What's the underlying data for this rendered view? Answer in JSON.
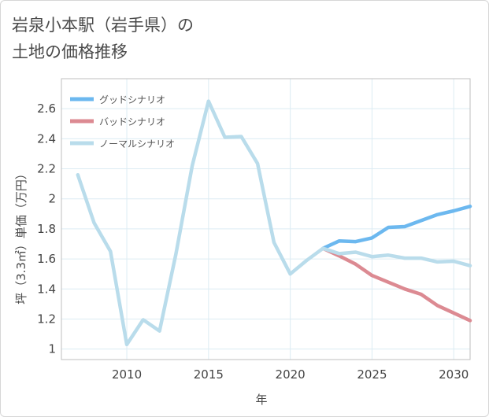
{
  "title": {
    "line1": "岩泉小本駅（岩手県）の",
    "line2": "土地の価格推移"
  },
  "chart_data": {
    "type": "line",
    "xlabel": "年",
    "ylabel": "坪（3.3㎡）単価（万円）",
    "xlim": [
      2006,
      2031
    ],
    "ylim": [
      0.93,
      2.8
    ],
    "xticks": [
      2010,
      2015,
      2020,
      2025,
      2030
    ],
    "yticks": [
      1,
      1.2,
      1.4,
      1.6,
      1.8,
      2,
      2.2,
      2.4,
      2.6
    ],
    "legend_position": "top-left",
    "series": [
      {
        "key": "good",
        "name": "グッドシナリオ",
        "color": "#6cb8ef",
        "x": [
          2022,
          2023,
          2024,
          2025,
          2026,
          2027,
          2028,
          2029,
          2030,
          2031
        ],
        "values": [
          1.67,
          1.72,
          1.715,
          1.74,
          1.81,
          1.815,
          1.855,
          1.895,
          1.92,
          1.95
        ]
      },
      {
        "key": "bad",
        "name": "バッドシナリオ",
        "color": "#dc8a92",
        "x": [
          2022,
          2023,
          2024,
          2025,
          2026,
          2027,
          2028,
          2029,
          2030,
          2031
        ],
        "values": [
          1.67,
          1.62,
          1.565,
          1.49,
          1.445,
          1.4,
          1.365,
          1.29,
          1.24,
          1.19
        ]
      },
      {
        "key": "normal",
        "name": "ノーマルシナリオ",
        "color": "#b9dceb",
        "x": [
          2007,
          2008,
          2009,
          2010,
          2011,
          2012,
          2013,
          2014,
          2015,
          2016,
          2017,
          2018,
          2019,
          2020,
          2021,
          2022,
          2023,
          2024,
          2025,
          2026,
          2027,
          2028,
          2029,
          2030,
          2031
        ],
        "values": [
          2.16,
          1.84,
          1.65,
          1.03,
          1.195,
          1.12,
          1.63,
          2.22,
          2.65,
          2.41,
          2.415,
          2.235,
          1.71,
          1.5,
          1.59,
          1.67,
          1.635,
          1.645,
          1.615,
          1.625,
          1.605,
          1.605,
          1.58,
          1.585,
          1.555
        ]
      }
    ]
  }
}
